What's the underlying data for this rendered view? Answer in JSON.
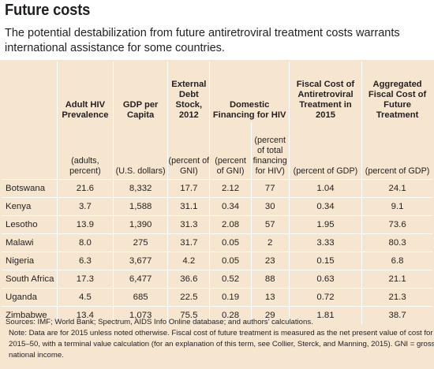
{
  "title": "Future costs",
  "subtitle": "The potential destabilization from future antiretroviral treatment costs warrants international assistance for some countries.",
  "table": {
    "headers": [
      "",
      "Adult HIV Prevalence",
      "GDP per Capita",
      "External Debt Stock, 2012",
      "Domestic Financing for HIV",
      "",
      "Fiscal Cost of Antiretroviral Treatment in 2015",
      "Aggregated Fiscal Cost of Future Treatment"
    ],
    "units": [
      "",
      "(adults, percent)",
      "(U.S. dollars)",
      "(percent of GNI)",
      "(percent of GNI)",
      "(percent of total financing for HIV)",
      "(percent of GDP)",
      "(percent of GDP)"
    ],
    "rows": [
      [
        "Botswana",
        "21.6",
        "8,332",
        "17.7",
        "2.12",
        "77",
        "1.04",
        "24.1"
      ],
      [
        "Kenya",
        "3.7",
        "1,588",
        "31.1",
        "0.34",
        "30",
        "0.34",
        "9.1"
      ],
      [
        "Lesotho",
        "13.9",
        "1,390",
        "31.3",
        "2.08",
        "57",
        "1.95",
        "73.6"
      ],
      [
        "Malawi",
        "8.0",
        "275",
        "31.7",
        "0.05",
        "2",
        "3.33",
        "80.3"
      ],
      [
        "Nigeria",
        "6.3",
        "3,677",
        "4.2",
        "0.05",
        "23",
        "0.15",
        "6.8"
      ],
      [
        "South Africa",
        "17.3",
        "6,477",
        "36.6",
        "0.52",
        "88",
        "0.63",
        "21.1"
      ],
      [
        "Uganda",
        "4.5",
        "685",
        "22.5",
        "0.19",
        "13",
        "0.72",
        "21.3"
      ],
      [
        "Zimbabwe",
        "13.4",
        "1,073",
        "75.5",
        "0.28",
        "29",
        "1.81",
        "38.7"
      ]
    ]
  },
  "sources": "Sources: IMF; World Bank; Spectrum, AIDS Info Online database; and authors’ calculations.",
  "note": "Note: Data are for 2015 unless noted otherwise. Fiscal cost of future treatment is measured as the net present value of cost for 2015–50, with a terminal value calculation (for an explanation of this term, see Collier, Sterck, and Manning, 2015). GNI = gross national income.",
  "colors": {
    "panel": "#f6e6cf",
    "divider": "#ffffff",
    "text": "#231f20"
  }
}
